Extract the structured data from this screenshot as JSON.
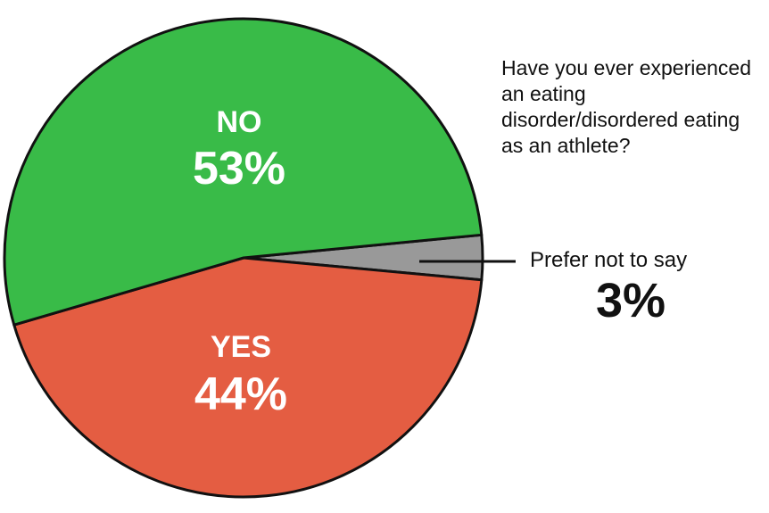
{
  "chart_data": {
    "type": "pie",
    "title": "Have you ever experienced an eating disorder/disordered eating as an athlete?",
    "slices": [
      {
        "name": "NO",
        "value": 53,
        "label": "53%",
        "color": "#39bb48"
      },
      {
        "name": "YES",
        "value": 44,
        "label": "44%",
        "color": "#e45d42"
      },
      {
        "name": "Prefer not to say",
        "value": 3,
        "label": "3%",
        "color": "#999999"
      }
    ]
  }
}
